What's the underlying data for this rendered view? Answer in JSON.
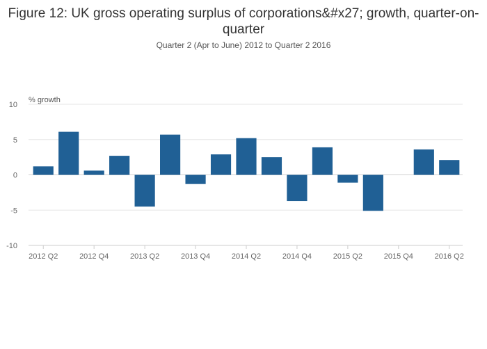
{
  "chart_data": {
    "type": "bar",
    "title": "Figure 12: UK gross operating surplus of corporations&#x27; growth, quarter-on-quarter",
    "subtitle": "Quarter 2 (Apr to June) 2012 to Quarter 2 2016",
    "ylabel": "% growth",
    "xlabel": "",
    "ylim": [
      -10,
      10
    ],
    "yticks": [
      10,
      5,
      0,
      -5,
      -10
    ],
    "yticks_labels": [
      "10",
      "5",
      "0",
      "-5",
      "-10"
    ],
    "categories": [
      "2012 Q2",
      "2012 Q3",
      "2012 Q4",
      "2013 Q1",
      "2013 Q2",
      "2013 Q3",
      "2013 Q4",
      "2014 Q1",
      "2014 Q2",
      "2014 Q3",
      "2014 Q4",
      "2015 Q1",
      "2015 Q2",
      "2015 Q3",
      "2015 Q4",
      "2016 Q1",
      "2016 Q2"
    ],
    "xtick_labels": [
      "2012 Q2",
      "2012 Q4",
      "2013 Q2",
      "2013 Q4",
      "2014 Q2",
      "2014 Q4",
      "2015 Q2",
      "2015 Q4",
      "2016 Q2"
    ],
    "values": [
      1.2,
      6.1,
      0.6,
      2.7,
      -4.5,
      5.7,
      -1.3,
      2.9,
      5.2,
      2.5,
      -3.7,
      3.9,
      -1.1,
      -5.1,
      0.0,
      3.6,
      2.1
    ],
    "grid": true,
    "bar_color": "#206095"
  }
}
